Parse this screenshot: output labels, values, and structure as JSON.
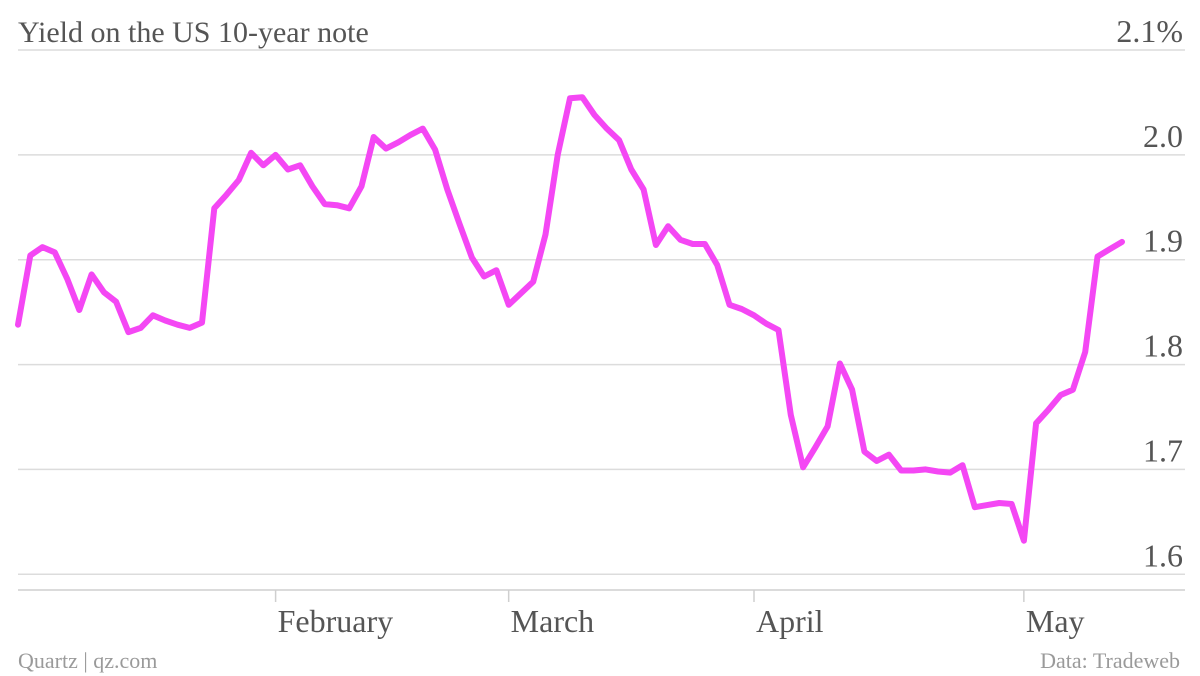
{
  "chart_data": {
    "type": "line",
    "title": "Yield on the US 10-year note",
    "credit": "Quartz | qz.com",
    "source": "Data: Tradeweb",
    "color": "#f447f4",
    "grid": true,
    "categories": [
      null,
      null,
      null,
      null,
      null,
      null,
      null,
      null,
      null,
      null,
      null,
      null,
      null,
      null,
      null,
      null,
      null,
      null,
      null,
      null,
      null,
      "February",
      null,
      null,
      null,
      null,
      null,
      null,
      null,
      null,
      null,
      null,
      null,
      null,
      null,
      null,
      null,
      null,
      null,
      null,
      "March",
      null,
      null,
      null,
      null,
      null,
      null,
      null,
      null,
      null,
      null,
      null,
      null,
      null,
      null,
      null,
      null,
      null,
      null,
      null,
      "April",
      null,
      null,
      null,
      null,
      null,
      null,
      null,
      null,
      null,
      null,
      null,
      null,
      null,
      null,
      null,
      null,
      null,
      null,
      null,
      null,
      null,
      "May",
      null,
      null,
      null,
      null,
      null,
      null,
      null,
      null
    ],
    "values": [
      1.838,
      1.904,
      1.912,
      1.907,
      1.882,
      1.852,
      1.886,
      1.869,
      1.86,
      1.831,
      1.835,
      1.847,
      1.842,
      1.838,
      1.835,
      1.84,
      1.949,
      1.962,
      1.976,
      2.002,
      1.99,
      2.0,
      1.986,
      1.99,
      1.97,
      1.953,
      1.952,
      1.949,
      1.97,
      2.017,
      2.006,
      2.012,
      2.019,
      2.025,
      2.005,
      1.967,
      1.934,
      1.902,
      1.884,
      1.89,
      1.857,
      1.868,
      1.879,
      1.924,
      2.0,
      2.054,
      2.055,
      2.038,
      2.025,
      2.014,
      1.986,
      1.967,
      1.914,
      1.932,
      1.919,
      1.915,
      1.915,
      1.895,
      1.857,
      1.853,
      1.847,
      1.839,
      1.833,
      1.752,
      1.702,
      1.721,
      1.741,
      1.801,
      1.776,
      1.717,
      1.708,
      1.714,
      1.699,
      1.699,
      1.7,
      1.698,
      1.697,
      1.704,
      1.664,
      1.666,
      1.668,
      1.667,
      1.632,
      1.744,
      1.757,
      1.771,
      1.776,
      1.812,
      1.903,
      1.91,
      1.917
    ],
    "ylim": [
      1.585,
      2.1
    ],
    "yticks": [
      {
        "value": 2.1,
        "label": "2.1%"
      },
      {
        "value": 2.0,
        "label": "2.0"
      },
      1.9,
      1.8,
      1.7,
      1.6
    ]
  }
}
